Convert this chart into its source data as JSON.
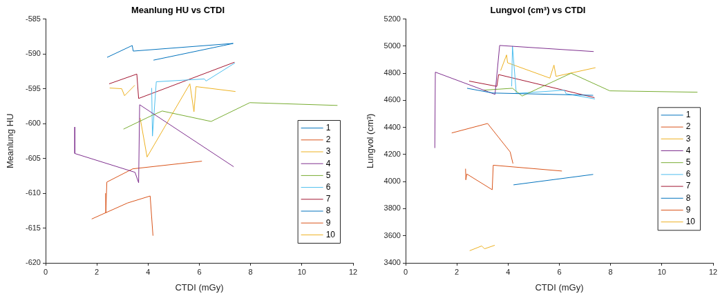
{
  "chart_data": [
    {
      "type": "line",
      "title": "Meanlung HU vs CTDI",
      "xlabel": "CTDI (mGy)",
      "ylabel": "Meanlung HU",
      "xlim": [
        0,
        12
      ],
      "xticks": [
        0,
        2,
        4,
        6,
        8,
        10,
        12
      ],
      "ylim": [
        -620,
        -585
      ],
      "yticks": [
        -620,
        -615,
        -610,
        -605,
        -600,
        -595,
        -590,
        -585
      ],
      "grid": false,
      "legend": "bottom right",
      "series": [
        {
          "name": "1",
          "color": "#0072bd",
          "x": [
            2.4,
            3.38,
            3.42,
            7.32
          ],
          "values": [
            -590.5,
            -588.8,
            -589.6,
            -588.5
          ]
        },
        {
          "name": "2",
          "color": "#d95319",
          "x": [
            1.8,
            3.2,
            4.08,
            4.19
          ],
          "values": [
            -613.7,
            -611.4,
            -610.4,
            -616.1
          ]
        },
        {
          "name": "3",
          "color": "#edb120",
          "x": [
            2.5,
            2.97,
            3.08,
            3.48
          ],
          "values": [
            -594.9,
            -595.0,
            -596.0,
            -594.5
          ]
        },
        {
          "name": "4",
          "color": "#7e2f8e",
          "x": [
            1.14,
            1.14,
            3.49,
            3.63,
            3.67,
            7.34
          ],
          "values": [
            -600.5,
            -604.3,
            -607.0,
            -608.5,
            -597.3,
            -606.2
          ]
        },
        {
          "name": "5",
          "color": "#77ac30",
          "x": [
            3.04,
            4.17,
            4.55,
            6.46,
            7.97,
            11.39
          ],
          "values": [
            -600.8,
            -598.8,
            -598.2,
            -599.7,
            -597.0,
            -597.4
          ]
        },
        {
          "name": "6",
          "color": "#4dbeee",
          "x": [
            4.14,
            4.17,
            4.32,
            6.2,
            6.26,
            7.39
          ],
          "values": [
            -594.9,
            -601.8,
            -594.0,
            -593.6,
            -593.9,
            -591.3
          ]
        },
        {
          "name": "7",
          "color": "#a2142f",
          "x": [
            2.48,
            3.56,
            3.63,
            7.37
          ],
          "values": [
            -594.3,
            -592.9,
            -596.4,
            -591.2
          ]
        },
        {
          "name": "8",
          "color": "#0072bd",
          "x": [
            4.21,
            6.94,
            7.32
          ],
          "values": [
            -590.9,
            -588.8,
            -588.5
          ]
        },
        {
          "name": "9",
          "color": "#d95319",
          "x": [
            2.34,
            2.35,
            2.39,
            3.4,
            6.1
          ],
          "values": [
            -610.0,
            -612.8,
            -608.4,
            -606.5,
            -605.4
          ]
        },
        {
          "name": "10",
          "color": "#edb120",
          "x": [
            3.69,
            3.96,
            5.63,
            5.79,
            5.87,
            7.41
          ],
          "values": [
            -599.2,
            -604.8,
            -594.3,
            -598.3,
            -594.7,
            -595.4
          ]
        }
      ]
    },
    {
      "type": "line",
      "title": "Lungvol (cm³) vs CTDI",
      "xlabel": "CTDI (mGy)",
      "ylabel": "Lungvol (cm³)",
      "xlim": [
        0,
        12
      ],
      "xticks": [
        0,
        2,
        4,
        6,
        8,
        10,
        12
      ],
      "ylim": [
        3400,
        5200
      ],
      "yticks": [
        3400,
        3600,
        3800,
        4000,
        4200,
        4400,
        4600,
        4800,
        5000,
        5200
      ],
      "grid": false,
      "legend": "right",
      "series": [
        {
          "name": "1",
          "color": "#0072bd",
          "x": [
            2.4,
            3.4,
            7.32
          ],
          "values": [
            4689,
            4654,
            4637
          ]
        },
        {
          "name": "2",
          "color": "#d95319",
          "x": [
            1.8,
            3.2,
            4.08,
            4.19
          ],
          "values": [
            4359,
            4429,
            4219,
            4133
          ]
        },
        {
          "name": "3",
          "color": "#edb120",
          "x": [
            2.5,
            2.97,
            3.08,
            3.48
          ],
          "values": [
            3490,
            3525,
            3504,
            3530
          ]
        },
        {
          "name": "4",
          "color": "#7e2f8e",
          "x": [
            1.14,
            1.16,
            3.49,
            3.67,
            7.34
          ],
          "values": [
            4248,
            4808,
            4644,
            5005,
            4960
          ]
        },
        {
          "name": "5",
          "color": "#77ac30",
          "x": [
            3.04,
            4.17,
            4.55,
            6.46,
            7.97,
            11.39
          ],
          "values": [
            4675,
            4689,
            4632,
            4800,
            4670,
            4660
          ]
        },
        {
          "name": "6",
          "color": "#4dbeee",
          "x": [
            4.14,
            4.17,
            4.32,
            6.2,
            6.26,
            7.39
          ],
          "values": [
            4703,
            5000,
            4651,
            4675,
            4649,
            4610
          ]
        },
        {
          "name": "7",
          "color": "#a2142f",
          "x": [
            2.48,
            3.56,
            3.63,
            7.37
          ],
          "values": [
            4742,
            4703,
            4790,
            4620
          ]
        },
        {
          "name": "8",
          "color": "#0072bd",
          "x": [
            4.21,
            7.32
          ],
          "values": [
            3976,
            4053
          ]
        },
        {
          "name": "9",
          "color": "#d95319",
          "x": [
            2.34,
            2.35,
            2.39,
            3.38,
            3.42,
            6.1
          ],
          "values": [
            4095,
            4013,
            4056,
            3940,
            4121,
            4078
          ]
        },
        {
          "name": "10",
          "color": "#edb120",
          "x": [
            3.71,
            3.94,
            3.98,
            5.63,
            5.79,
            5.87,
            7.41
          ],
          "values": [
            4820,
            4935,
            4877,
            4764,
            4860,
            4777,
            4841
          ]
        }
      ]
    }
  ]
}
